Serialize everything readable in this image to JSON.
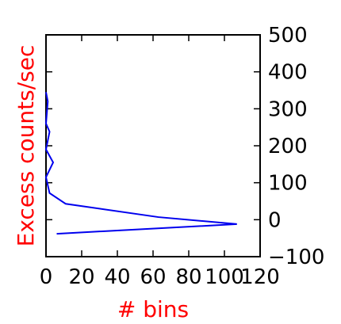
{
  "chart_data": {
    "type": "line",
    "title": "",
    "xlabel": "# bins",
    "ylabel": "Excess counts/sec",
    "label_color": "#ff0000",
    "line_color": "#0000ee",
    "xlim": [
      0,
      120
    ],
    "ylim": [
      -100,
      500
    ],
    "xticks": [
      0,
      20,
      40,
      60,
      80,
      100,
      120
    ],
    "yticks": [
      -100,
      0,
      100,
      200,
      300,
      400,
      500
    ],
    "ytick_side": "right",
    "grid": false,
    "series": [
      {
        "x": [
          6,
          107,
          63,
          11,
          2,
          0,
          4,
          0,
          2,
          0,
          1,
          0
        ],
        "y": [
          -38,
          -12,
          7,
          43,
          72,
          115,
          155,
          190,
          238,
          260,
          320,
          345
        ]
      }
    ]
  }
}
